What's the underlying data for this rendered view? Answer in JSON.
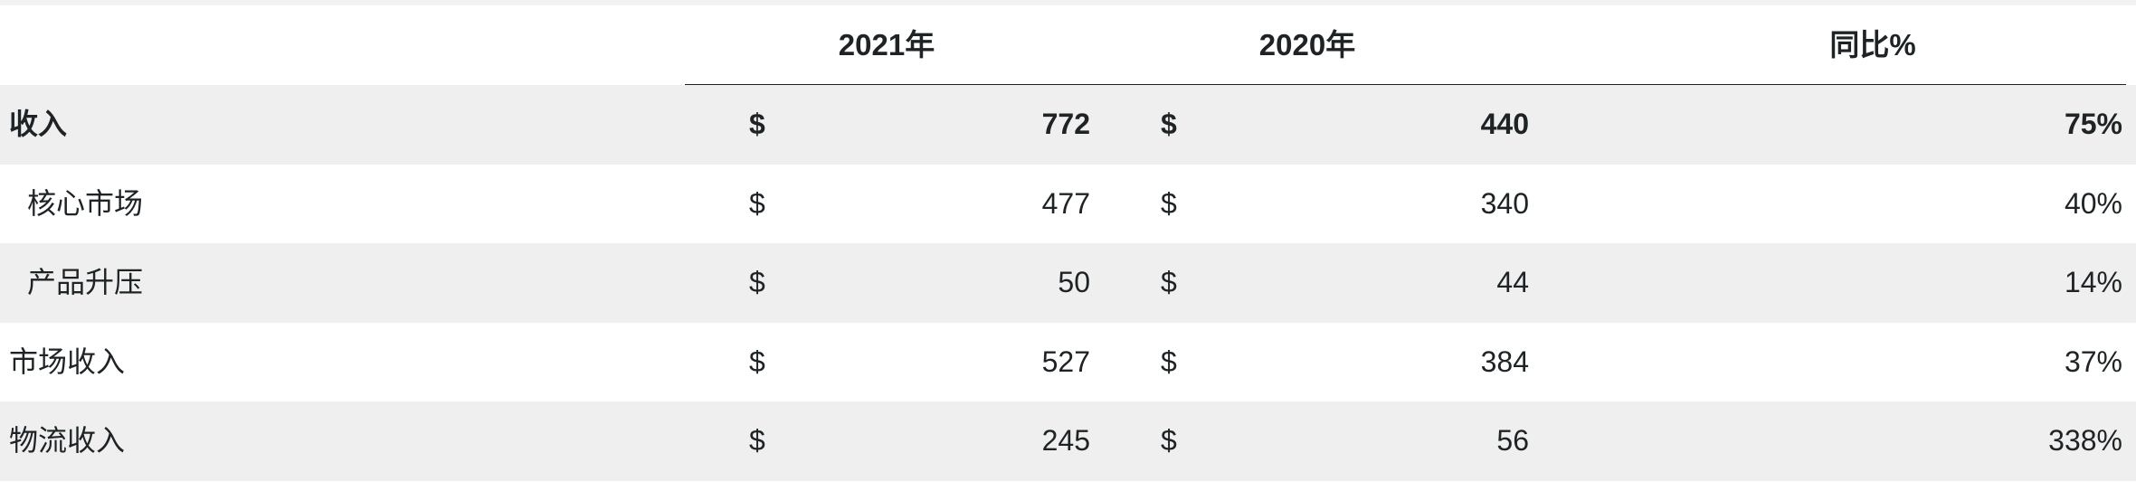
{
  "table": {
    "headers": {
      "col_2021": "2021年",
      "col_2020": "2020年",
      "col_yoy": "同比%"
    },
    "rows": [
      {
        "label": "收入",
        "cur_2021": "$",
        "v2021": "772",
        "cur_2020": "$",
        "v2020": "440",
        "yoy": "75%"
      },
      {
        "label": "核心市场",
        "cur_2021": "$",
        "v2021": "477",
        "cur_2020": "$",
        "v2020": "340",
        "yoy": "40%"
      },
      {
        "label": "产品升压",
        "cur_2021": "$",
        "v2021": "50",
        "cur_2020": "$",
        "v2020": "44",
        "yoy": "14%"
      },
      {
        "label": "市场收入",
        "cur_2021": "$",
        "v2021": "527",
        "cur_2020": "$",
        "v2020": "384",
        "yoy": "37%"
      },
      {
        "label": "物流收入",
        "cur_2021": "$",
        "v2021": "245",
        "cur_2020": "$",
        "v2020": "56",
        "yoy": "338%"
      }
    ]
  }
}
